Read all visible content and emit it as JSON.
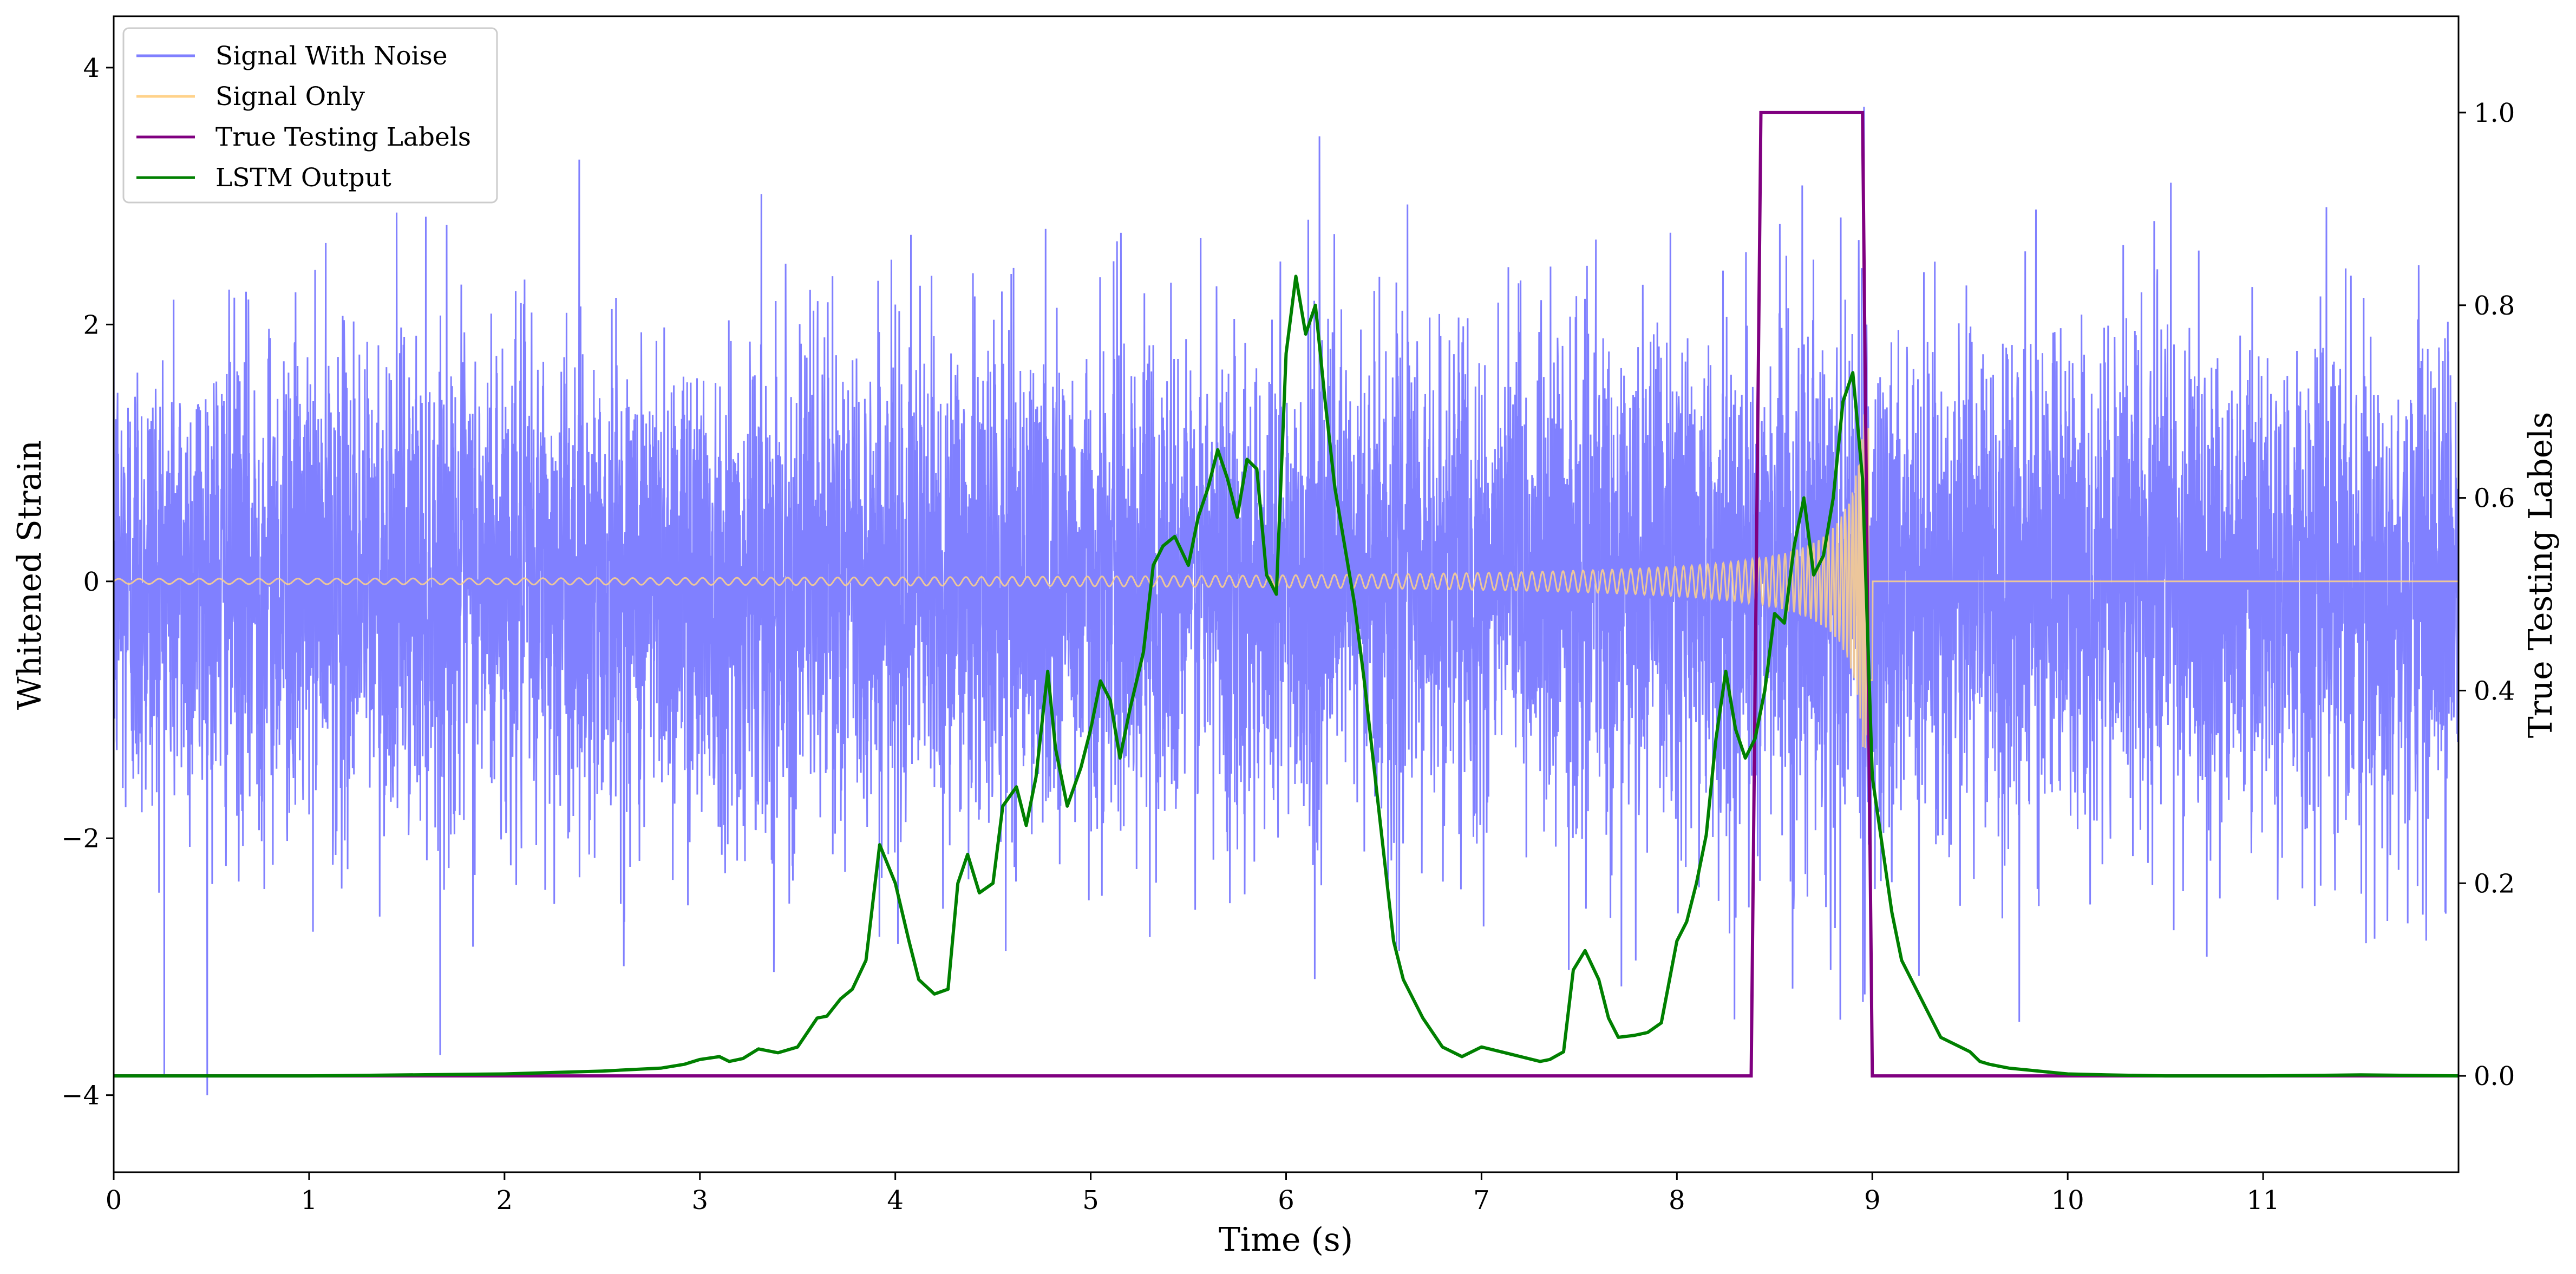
{
  "chart_data": {
    "type": "line",
    "xlabel": "Time (s)",
    "ylabel_left": "Whitened Strain",
    "ylabel_right": "True Testing Labels",
    "xlim": [
      0,
      12
    ],
    "ylim_left": [
      -4.6,
      4.4
    ],
    "ylim_right": [
      -0.1,
      1.1
    ],
    "x_ticks": [
      0,
      1,
      2,
      3,
      4,
      5,
      6,
      7,
      8,
      9,
      10,
      11
    ],
    "y_ticks_left": [
      -4,
      -2,
      0,
      2,
      4
    ],
    "y_ticks_right": [
      0.0,
      0.2,
      0.4,
      0.6,
      0.8,
      1.0
    ],
    "y_tick_labels_left": [
      "−4",
      "−2",
      "0",
      "2",
      "4"
    ],
    "y_tick_labels_right": [
      "0.0",
      "0.2",
      "0.4",
      "0.6",
      "0.8",
      "1.0"
    ],
    "x_tick_labels": [
      "0",
      "1",
      "2",
      "3",
      "4",
      "5",
      "6",
      "7",
      "8",
      "9",
      "10",
      "11"
    ],
    "legend": {
      "placement": "upper-left",
      "entries": [
        {
          "label": "Signal With Noise",
          "color": "#8080ff"
        },
        {
          "label": "Signal Only",
          "color": "#ffd28a"
        },
        {
          "label": "True Testing Labels",
          "color": "#800080"
        },
        {
          "label": "LSTM Output",
          "color": "#008000"
        }
      ]
    },
    "series": [
      {
        "name": "Signal With Noise",
        "axis": "left",
        "color": "#8080ff",
        "noise_std": 0.95,
        "x_range": [
          0,
          12
        ],
        "y_range": [
          -4.25,
          3.8
        ]
      },
      {
        "name": "Signal Only",
        "axis": "left",
        "color": "#ffd28a",
        "chirp": {
          "start": 0,
          "merger": 9.0,
          "amplitude_start": 0.02,
          "amplitude_peak": 1.3,
          "x_range": [
            0,
            12
          ]
        }
      },
      {
        "name": "True Testing Labels",
        "axis": "right",
        "color": "#800080",
        "x": [
          0,
          8.38,
          8.43,
          8.95,
          9.0,
          12.0
        ],
        "y": [
          0,
          0,
          1,
          1,
          0,
          0
        ]
      },
      {
        "name": "LSTM Output",
        "axis": "right",
        "color": "#008000",
        "x": [
          0,
          1.0,
          2.0,
          2.5,
          2.8,
          2.92,
          3.0,
          3.1,
          3.15,
          3.22,
          3.3,
          3.4,
          3.5,
          3.6,
          3.65,
          3.72,
          3.78,
          3.85,
          3.92,
          4.0,
          4.07,
          4.12,
          4.2,
          4.27,
          4.32,
          4.37,
          4.43,
          4.5,
          4.55,
          4.62,
          4.67,
          4.72,
          4.78,
          4.82,
          4.88,
          4.95,
          5.0,
          5.05,
          5.1,
          5.15,
          5.2,
          5.27,
          5.32,
          5.37,
          5.43,
          5.5,
          5.55,
          5.6,
          5.65,
          5.7,
          5.75,
          5.8,
          5.85,
          5.9,
          5.95,
          6.0,
          6.05,
          6.1,
          6.15,
          6.2,
          6.25,
          6.3,
          6.35,
          6.4,
          6.5,
          6.55,
          6.6,
          6.7,
          6.8,
          6.9,
          7.0,
          7.1,
          7.2,
          7.3,
          7.35,
          7.42,
          7.47,
          7.53,
          7.6,
          7.65,
          7.7,
          7.78,
          7.85,
          7.92,
          8.0,
          8.05,
          8.1,
          8.15,
          8.2,
          8.25,
          8.3,
          8.35,
          8.4,
          8.45,
          8.5,
          8.55,
          8.6,
          8.65,
          8.7,
          8.75,
          8.8,
          8.85,
          8.9,
          8.95,
          9.0,
          9.05,
          9.1,
          9.15,
          9.2,
          9.25,
          9.3,
          9.35,
          9.4,
          9.45,
          9.5,
          9.55,
          9.6,
          9.65,
          9.7,
          9.8,
          9.9,
          10.0,
          10.2,
          10.5,
          11.0,
          11.5,
          12.0
        ],
        "y": [
          0,
          0.0,
          0.002,
          0.005,
          0.008,
          0.012,
          0.017,
          0.02,
          0.015,
          0.018,
          0.028,
          0.024,
          0.03,
          0.06,
          0.062,
          0.08,
          0.09,
          0.12,
          0.24,
          0.2,
          0.14,
          0.1,
          0.085,
          0.09,
          0.2,
          0.23,
          0.19,
          0.2,
          0.28,
          0.3,
          0.26,
          0.31,
          0.42,
          0.34,
          0.28,
          0.32,
          0.36,
          0.41,
          0.39,
          0.33,
          0.38,
          0.44,
          0.53,
          0.55,
          0.56,
          0.53,
          0.58,
          0.61,
          0.65,
          0.62,
          0.58,
          0.64,
          0.63,
          0.52,
          0.5,
          0.75,
          0.83,
          0.77,
          0.8,
          0.7,
          0.61,
          0.55,
          0.49,
          0.41,
          0.23,
          0.14,
          0.1,
          0.06,
          0.03,
          0.02,
          0.03,
          0.025,
          0.02,
          0.015,
          0.017,
          0.025,
          0.11,
          0.13,
          0.1,
          0.06,
          0.04,
          0.042,
          0.045,
          0.055,
          0.14,
          0.16,
          0.2,
          0.25,
          0.35,
          0.42,
          0.36,
          0.33,
          0.35,
          0.4,
          0.48,
          0.47,
          0.55,
          0.6,
          0.52,
          0.54,
          0.6,
          0.7,
          0.73,
          0.62,
          0.31,
          0.24,
          0.17,
          0.12,
          0.1,
          0.08,
          0.06,
          0.04,
          0.035,
          0.03,
          0.025,
          0.015,
          0.012,
          0.01,
          0.008,
          0.006,
          0.004,
          0.002,
          0.001,
          0.0,
          0.0,
          0.001,
          0.0
        ]
      }
    ]
  }
}
